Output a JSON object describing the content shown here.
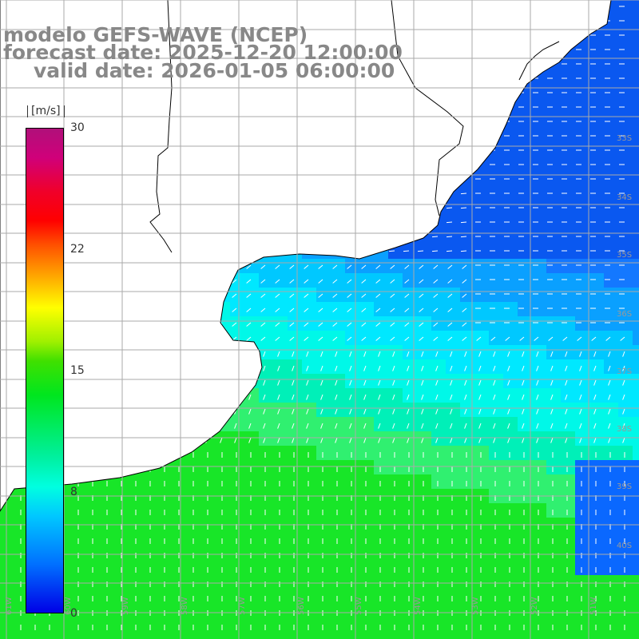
{
  "header": {
    "model_line": "modelo GEFS-WAVE (NCEP)",
    "forecast_line": "forecast date: 2025-12-20 12:00:00",
    "valid_line": "valid date: 2026-01-05 06:00:00"
  },
  "colorbar": {
    "unit": "[m/s]",
    "ticks": [
      "30",
      "22",
      "15",
      "8",
      "0"
    ],
    "range": [
      0,
      30
    ],
    "colors": [
      "#0000e6",
      "#0070ff",
      "#00c8ff",
      "#00ffe0",
      "#00e61e",
      "#ffff00",
      "#ff0000",
      "#b0107a"
    ]
  },
  "map": {
    "lat_labels": [
      "33S",
      "34S",
      "35S",
      "36S",
      "37S",
      "38S",
      "39S",
      "40S"
    ],
    "lon_labels": [
      "61W",
      "60W",
      "59W",
      "58W",
      "57W",
      "56W",
      "55W",
      "54W",
      "53W",
      "52W",
      "51W"
    ],
    "land_color": "#ffffff",
    "coast_color": "#000000",
    "grid_color": "#aaaaaa",
    "arrow_color": "#ffffff"
  }
}
